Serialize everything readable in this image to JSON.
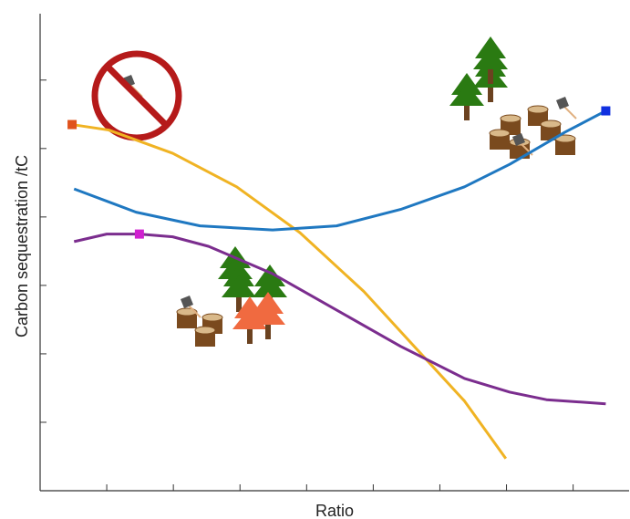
{
  "chart_data": {
    "type": "line",
    "xlabel": "Ratio",
    "ylabel": "Carbon sequestration /tC",
    "xlim": [
      0,
      8.84
    ],
    "ylim": [
      0,
      6.97
    ],
    "xticks": [
      1,
      2,
      3,
      4,
      5,
      6,
      7,
      8
    ],
    "yticks": [
      1,
      2,
      3,
      4,
      5,
      6
    ],
    "series": [
      {
        "color": "#f0b323",
        "marker": {
          "index": 0,
          "color": "#e0521c"
        },
        "x": [
          0.48,
          1.03,
          1.99,
          2.95,
          3.9,
          4.86,
          5.68,
          6.37,
          6.99
        ],
        "values": [
          5.35,
          5.27,
          4.93,
          4.44,
          3.77,
          2.91,
          2.04,
          1.31,
          0.47
        ]
      },
      {
        "color": "#1f78c1",
        "marker": {
          "index": 9,
          "color": "#1030e0"
        },
        "x": [
          0.51,
          1.44,
          2.4,
          3.49,
          4.45,
          5.41,
          6.37,
          7.05,
          7.88,
          8.49
        ],
        "values": [
          4.41,
          4.07,
          3.87,
          3.81,
          3.87,
          4.11,
          4.44,
          4.77,
          5.24,
          5.55
        ]
      },
      {
        "color": "#7b2d8e",
        "marker": {
          "index": 2,
          "color": "#d020d0"
        },
        "x": [
          0.51,
          1.0,
          1.49,
          1.99,
          2.53,
          3.49,
          4.45,
          5.41,
          6.37,
          7.05,
          7.6,
          8.49
        ],
        "values": [
          3.64,
          3.75,
          3.75,
          3.71,
          3.57,
          3.17,
          2.64,
          2.11,
          1.64,
          1.44,
          1.33,
          1.27
        ]
      }
    ]
  }
}
